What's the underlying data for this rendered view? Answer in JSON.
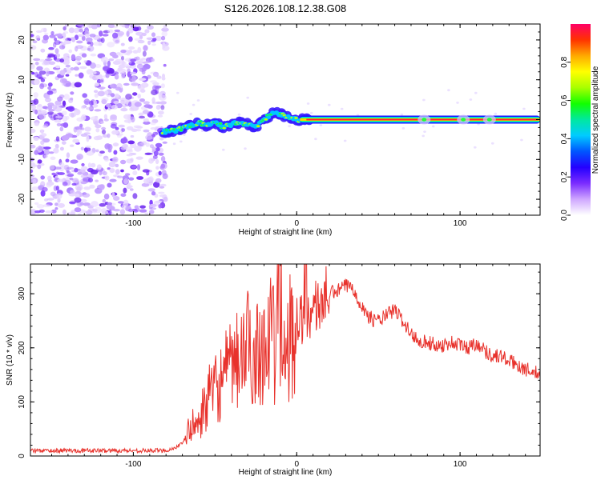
{
  "title": "S126.2026.108.12.38.G08",
  "chart_data": [
    {
      "type": "heatmap",
      "xlabel": "Height of straight line (km)",
      "ylabel": "Frequency (Hz)",
      "xlim": [
        -163,
        149
      ],
      "ylim": [
        -24,
        24
      ],
      "xticks": [
        -100,
        0,
        100
      ],
      "yticks": [
        -20,
        -10,
        0,
        10,
        20
      ],
      "colorbar": {
        "label": "Normalized spectral amplitude",
        "range": [
          0,
          1
        ],
        "ticks": [
          "0.0",
          "0.2",
          "0.4",
          "0.6",
          "0.8"
        ],
        "tick_values": [
          0,
          0.2,
          0.4,
          0.6,
          0.8
        ],
        "colors": [
          "#ffffff",
          "#cfa7ff",
          "#7a2cff",
          "#2400ff",
          "#0055ff",
          "#00ccff",
          "#00e8a0",
          "#11ff00",
          "#a8ff00",
          "#ffff00",
          "#ffaa00",
          "#ff3300",
          "#ff0066"
        ]
      },
      "noise_region": {
        "x_range": [
          -163,
          -80
        ],
        "y_range": [
          -24,
          24
        ]
      },
      "signal_track": {
        "x": [
          -82,
          -75,
          -70,
          -65,
          -60,
          -55,
          -50,
          -45,
          -40,
          -35,
          -30,
          -25,
          -20,
          -15,
          -10,
          -5,
          0,
          5,
          149
        ],
        "y": [
          -3,
          -2.8,
          -2.2,
          -1.5,
          -0.8,
          -1.4,
          -0.5,
          -2.0,
          -1.2,
          -0.8,
          -1.0,
          -2.0,
          0,
          1.5,
          1.5,
          0.5,
          0,
          0,
          0
        ]
      }
    },
    {
      "type": "line",
      "xlabel": "Height of straight line (km)",
      "ylabel": "SNR (10 * v/v)",
      "xlim": [
        -163,
        149
      ],
      "ylim": [
        0,
        355
      ],
      "xticks": [
        -100,
        0,
        100
      ],
      "yticks": [
        0,
        100,
        200,
        300
      ],
      "color": "#e8322c",
      "series": [
        {
          "name": "SNR",
          "x": [
            -163,
            -140,
            -120,
            -100,
            -85,
            -78,
            -70,
            -65,
            -60,
            -55,
            -50,
            -45,
            -40,
            -35,
            -30,
            -25,
            -20,
            -15,
            -10,
            -5,
            0,
            5,
            10,
            15,
            20,
            25,
            30,
            35,
            40,
            45,
            50,
            55,
            60,
            65,
            70,
            75,
            80,
            85,
            90,
            95,
            100,
            105,
            110,
            115,
            120,
            125,
            130,
            135,
            140,
            145,
            149
          ],
          "y": [
            10,
            10,
            10,
            10,
            10,
            11,
            22,
            55,
            60,
            105,
            120,
            145,
            160,
            180,
            200,
            195,
            210,
            215,
            180,
            220,
            245,
            255,
            270,
            285,
            300,
            305,
            315,
            310,
            275,
            255,
            250,
            260,
            270,
            250,
            225,
            215,
            210,
            205,
            205,
            210,
            205,
            200,
            210,
            195,
            185,
            185,
            175,
            170,
            160,
            155,
            150
          ]
        }
      ]
    }
  ]
}
